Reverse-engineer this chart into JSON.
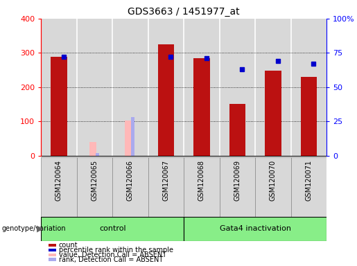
{
  "title": "GDS3663 / 1451977_at",
  "samples": [
    "GSM120064",
    "GSM120065",
    "GSM120066",
    "GSM120067",
    "GSM120068",
    "GSM120069",
    "GSM120070",
    "GSM120071"
  ],
  "count_values": [
    288,
    null,
    null,
    325,
    284,
    150,
    248,
    230
  ],
  "percentile_rank": [
    72,
    null,
    null,
    72,
    71,
    63,
    69,
    67
  ],
  "absent_value": [
    null,
    40,
    103,
    null,
    null,
    null,
    null,
    null
  ],
  "absent_rank": [
    null,
    8,
    112,
    null,
    null,
    null,
    null,
    null
  ],
  "group1_label": "control",
  "group1_indices": [
    0,
    1,
    2,
    3
  ],
  "group2_label": "Gata4 inactivation",
  "group2_indices": [
    4,
    5,
    6,
    7
  ],
  "ylim_left": [
    0,
    400
  ],
  "ylim_right": [
    0,
    100
  ],
  "yticks_left": [
    0,
    100,
    200,
    300,
    400
  ],
  "yticks_right": [
    0,
    25,
    50,
    75,
    100
  ],
  "yticklabels_right": [
    "0",
    "25",
    "50",
    "75",
    "100%"
  ],
  "bar_color_count": "#bb1111",
  "bar_color_absent_value": "#ffb8b8",
  "dot_color_rank": "#0000cc",
  "dot_color_absent_rank": "#aaaaee",
  "group_bg_color": "#88ee88",
  "plot_bg_color": "#d8d8d8",
  "col_sep_color": "#ffffff",
  "legend_labels": [
    "count",
    "percentile rank within the sample",
    "value, Detection Call = ABSENT",
    "rank, Detection Call = ABSENT"
  ],
  "legend_colors": [
    "#bb1111",
    "#0000cc",
    "#ffb8b8",
    "#aaaaee"
  ]
}
